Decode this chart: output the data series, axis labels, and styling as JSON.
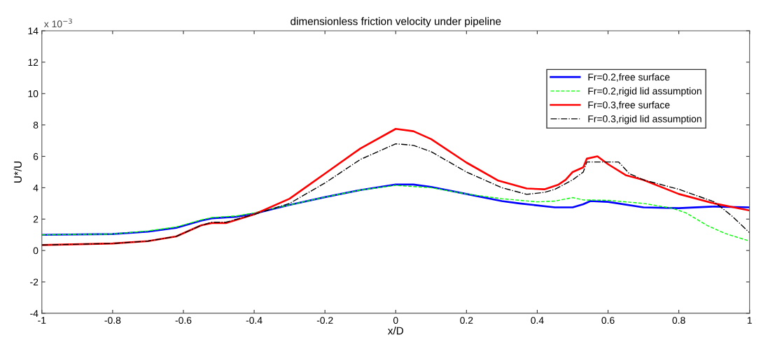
{
  "chart_data": {
    "type": "line",
    "title": "dimensionless friction velocity under pipeline",
    "xlabel": "x/D",
    "ylabel": "U*/U",
    "annotations": [
      "x 10$^{−3}$"
    ],
    "xlim": [
      -1,
      1
    ],
    "xticks": [
      -1,
      -0.8,
      -0.6,
      -0.4,
      -0.2,
      0,
      0.2,
      0.4,
      0.6,
      0.8,
      1
    ],
    "ylim": [
      -4,
      14
    ],
    "yticks": [
      -4,
      -2,
      0,
      2,
      4,
      6,
      8,
      10,
      12,
      14
    ],
    "grid": false,
    "legend": "top right",
    "marker": "none",
    "series": [
      {
        "name": "Fr=0.2,free surface",
        "color": "#0000ff",
        "line_style": "solid",
        "x": [
          -1,
          -0.8,
          -0.7,
          -0.62,
          -0.55,
          -0.52,
          -0.45,
          -0.4,
          -0.3,
          -0.2,
          -0.1,
          0,
          0.05,
          0.1,
          0.2,
          0.3,
          0.35,
          0.45,
          0.5,
          0.53,
          0.55,
          0.6,
          0.7,
          0.8,
          0.9,
          1
        ],
        "values": [
          1.0,
          1.05,
          1.2,
          1.45,
          1.9,
          2.05,
          2.15,
          2.35,
          2.9,
          3.4,
          3.85,
          4.2,
          4.2,
          4.05,
          3.6,
          3.15,
          3.0,
          2.75,
          2.75,
          2.95,
          3.15,
          3.1,
          2.75,
          2.7,
          2.8,
          2.75
        ]
      },
      {
        "name": "Fr=0.2,rigid lid assumption",
        "color": "#00ff00",
        "line_style": "dashed",
        "x": [
          -1,
          -0.8,
          -0.7,
          -0.62,
          -0.55,
          -0.52,
          -0.45,
          -0.4,
          -0.3,
          -0.2,
          -0.1,
          0,
          0.1,
          0.2,
          0.3,
          0.4,
          0.45,
          0.5,
          0.53,
          0.6,
          0.7,
          0.78,
          0.82,
          0.88,
          0.93,
          1
        ],
        "values": [
          1.0,
          1.05,
          1.25,
          1.5,
          1.95,
          2.1,
          2.2,
          2.4,
          2.9,
          3.4,
          3.85,
          4.15,
          4.0,
          3.6,
          3.3,
          3.1,
          3.15,
          3.37,
          3.22,
          3.2,
          3.0,
          2.7,
          2.4,
          1.6,
          1.09,
          0.6
        ]
      },
      {
        "name": "Fr=0.3,free surface",
        "color": "#ff0000",
        "line_style": "solid",
        "x": [
          -1,
          -0.8,
          -0.7,
          -0.62,
          -0.55,
          -0.52,
          -0.48,
          -0.4,
          -0.3,
          -0.2,
          -0.1,
          0,
          0.05,
          0.1,
          0.2,
          0.29,
          0.37,
          0.42,
          0.46,
          0.48,
          0.5,
          0.53,
          0.54,
          0.57,
          0.6,
          0.65,
          0.7,
          0.8,
          0.9,
          1
        ],
        "values": [
          0.35,
          0.45,
          0.6,
          0.9,
          1.6,
          1.75,
          1.75,
          2.3,
          3.3,
          4.9,
          6.5,
          7.75,
          7.6,
          7.1,
          5.6,
          4.45,
          3.95,
          3.9,
          4.2,
          4.5,
          5.0,
          5.3,
          5.85,
          6.0,
          5.5,
          4.8,
          4.5,
          3.6,
          3.0,
          2.55
        ]
      },
      {
        "name": "Fr=0.3,rigid lid assumption",
        "color": "#000000",
        "line_style": "dashdot",
        "x": [
          -1,
          -0.8,
          -0.7,
          -0.62,
          -0.55,
          -0.52,
          -0.48,
          -0.4,
          -0.3,
          -0.2,
          -0.1,
          0,
          0.05,
          0.1,
          0.2,
          0.3,
          0.37,
          0.42,
          0.45,
          0.5,
          0.53,
          0.54,
          0.63,
          0.66,
          0.7,
          0.8,
          0.85,
          0.9,
          0.95,
          1
        ],
        "values": [
          0.35,
          0.45,
          0.6,
          0.9,
          1.6,
          1.8,
          1.8,
          2.3,
          3.0,
          4.3,
          5.8,
          6.8,
          6.7,
          6.3,
          5.0,
          4.0,
          3.58,
          3.7,
          3.9,
          4.5,
          5.0,
          5.64,
          5.64,
          4.9,
          4.5,
          3.9,
          3.5,
          3.1,
          2.2,
          1.13
        ]
      }
    ]
  }
}
